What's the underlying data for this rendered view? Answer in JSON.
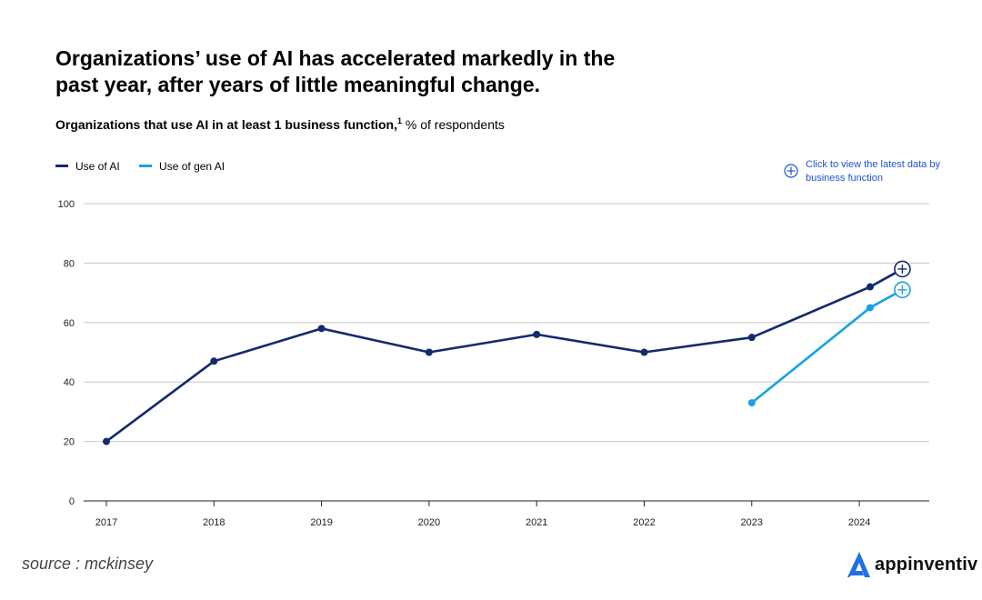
{
  "title": "Organizations’ use of AI has accelerated markedly in the past year, after years of little meaningful change.",
  "subtitle": {
    "bold_text": "Organizations that use AI in at least 1 business function,",
    "footnote": "1",
    "regular_text": " % of respondents"
  },
  "callout": {
    "text": "Click to view the latest data by business function",
    "icon": "plus-circle-icon"
  },
  "source": "source : mckinsey",
  "brand": {
    "name": "appinventiv",
    "icon": "appinventiv-logo-icon"
  },
  "colors": {
    "use_of_ai": "#142a6e",
    "use_of_gen_ai": "#17a2e4",
    "grid": "#c8c8c8",
    "axis": "#222222",
    "link": "#2251d1"
  },
  "chart_data": {
    "type": "line",
    "title": "Organizations that use AI in at least 1 business function, % of respondents",
    "xlabel": "",
    "ylabel": "% of respondents",
    "x_ticks": [
      "2017",
      "2018",
      "2019",
      "2020",
      "2021",
      "2022",
      "2023",
      "2024"
    ],
    "y_ticks": [
      0,
      20,
      40,
      60,
      80,
      100
    ],
    "ylim": [
      0,
      100
    ],
    "xlim": [
      2017,
      2024.4
    ],
    "grid": true,
    "legend": "top-left",
    "series": [
      {
        "name": "Use of AI",
        "x": [
          2017,
          2018,
          2019,
          2020,
          2021,
          2022,
          2023,
          2024.1,
          2024.4
        ],
        "values": [
          20,
          47,
          58,
          50,
          56,
          50,
          55,
          72,
          78
        ],
        "latest_marker": "plus-circle"
      },
      {
        "name": "Use of gen AI",
        "x": [
          2023,
          2024.1,
          2024.4
        ],
        "values": [
          33,
          65,
          71
        ],
        "latest_marker": "plus-circle"
      }
    ]
  }
}
